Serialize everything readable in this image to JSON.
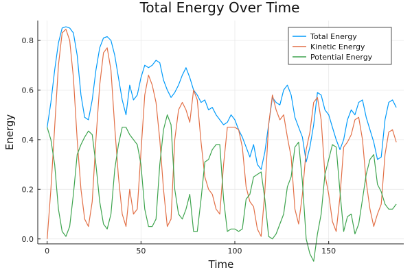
{
  "chart_data": {
    "type": "line",
    "title": "Total Energy Over Time",
    "xlabel": "Time",
    "ylabel": "Energy",
    "xlim": [
      -5,
      190
    ],
    "ylim": [
      -0.02,
      0.88
    ],
    "xticks": [
      0,
      50,
      100,
      150
    ],
    "yticks": [
      0.0,
      0.2,
      0.4,
      0.6,
      0.8
    ],
    "xtick_labels": [
      "0",
      "50",
      "100",
      "150"
    ],
    "ytick_labels": [
      "0.0",
      "0.2",
      "0.4",
      "0.6",
      "0.8"
    ],
    "grid": true,
    "legend_position": "top-right",
    "series": [
      {
        "name": "Total Energy",
        "color": "#009AFA",
        "x": [
          0,
          2,
          4,
          6,
          8,
          10,
          12,
          14,
          16,
          18,
          20,
          22,
          24,
          26,
          28,
          30,
          32,
          34,
          36,
          38,
          40,
          42,
          44,
          46,
          48,
          50,
          52,
          54,
          56,
          58,
          60,
          62,
          64,
          66,
          68,
          70,
          72,
          74,
          76,
          78,
          80,
          82,
          84,
          86,
          88,
          90,
          92,
          94,
          96,
          98,
          100,
          102,
          104,
          106,
          108,
          110,
          112,
          114,
          116,
          118,
          120,
          122,
          124,
          126,
          128,
          130,
          132,
          134,
          136,
          138,
          140,
          142,
          144,
          146,
          148,
          150,
          152,
          154,
          156,
          158,
          160,
          162,
          164,
          166,
          168,
          170,
          172,
          174,
          176,
          178,
          180,
          182,
          184,
          186
        ],
        "y": [
          0.45,
          0.55,
          0.68,
          0.79,
          0.85,
          0.855,
          0.85,
          0.83,
          0.74,
          0.58,
          0.49,
          0.48,
          0.56,
          0.68,
          0.77,
          0.81,
          0.815,
          0.8,
          0.74,
          0.65,
          0.56,
          0.5,
          0.62,
          0.56,
          0.58,
          0.65,
          0.7,
          0.69,
          0.7,
          0.72,
          0.71,
          0.64,
          0.6,
          0.57,
          0.59,
          0.62,
          0.66,
          0.69,
          0.65,
          0.6,
          0.58,
          0.55,
          0.56,
          0.52,
          0.53,
          0.5,
          0.48,
          0.46,
          0.47,
          0.5,
          0.48,
          0.44,
          0.41,
          0.37,
          0.33,
          0.38,
          0.3,
          0.28,
          0.35,
          0.46,
          0.57,
          0.55,
          0.54,
          0.6,
          0.62,
          0.58,
          0.49,
          0.45,
          0.41,
          0.31,
          0.37,
          0.46,
          0.59,
          0.58,
          0.52,
          0.5,
          0.45,
          0.4,
          0.36,
          0.4,
          0.48,
          0.52,
          0.5,
          0.55,
          0.56,
          0.49,
          0.44,
          0.39,
          0.32,
          0.33,
          0.48,
          0.55,
          0.56,
          0.53
        ]
      },
      {
        "name": "Kinetic Energy",
        "color": "#E26F46",
        "x": [
          0,
          2,
          4,
          6,
          8,
          10,
          12,
          14,
          16,
          18,
          20,
          22,
          24,
          26,
          28,
          30,
          32,
          34,
          36,
          38,
          40,
          42,
          44,
          46,
          48,
          50,
          52,
          54,
          56,
          58,
          60,
          62,
          64,
          66,
          68,
          70,
          72,
          74,
          76,
          78,
          80,
          82,
          84,
          86,
          88,
          90,
          92,
          94,
          96,
          98,
          100,
          102,
          104,
          106,
          108,
          110,
          112,
          114,
          116,
          118,
          120,
          122,
          124,
          126,
          128,
          130,
          132,
          134,
          136,
          138,
          140,
          142,
          144,
          146,
          148,
          150,
          152,
          154,
          156,
          158,
          160,
          162,
          164,
          166,
          168,
          170,
          172,
          174,
          176,
          178,
          180,
          182,
          184,
          186
        ],
        "y": [
          0.0,
          0.2,
          0.45,
          0.7,
          0.83,
          0.845,
          0.8,
          0.65,
          0.4,
          0.2,
          0.08,
          0.05,
          0.15,
          0.4,
          0.62,
          0.75,
          0.77,
          0.68,
          0.45,
          0.25,
          0.1,
          0.05,
          0.2,
          0.1,
          0.12,
          0.35,
          0.58,
          0.66,
          0.62,
          0.55,
          0.4,
          0.2,
          0.05,
          0.08,
          0.4,
          0.52,
          0.55,
          0.52,
          0.47,
          0.6,
          0.56,
          0.39,
          0.25,
          0.2,
          0.18,
          0.12,
          0.1,
          0.3,
          0.45,
          0.45,
          0.45,
          0.44,
          0.37,
          0.21,
          0.15,
          0.13,
          0.04,
          0.01,
          0.19,
          0.46,
          0.58,
          0.52,
          0.48,
          0.5,
          0.41,
          0.33,
          0.12,
          0.06,
          0.18,
          0.36,
          0.43,
          0.55,
          0.57,
          0.48,
          0.26,
          0.18,
          0.07,
          0.03,
          0.17,
          0.37,
          0.39,
          0.42,
          0.48,
          0.49,
          0.4,
          0.23,
          0.12,
          0.05,
          0.1,
          0.14,
          0.34,
          0.43,
          0.44,
          0.39
        ]
      },
      {
        "name": "Potential Energy",
        "color": "#3EA44E",
        "x": [
          0,
          2,
          4,
          6,
          8,
          10,
          12,
          14,
          16,
          18,
          20,
          22,
          24,
          26,
          28,
          30,
          32,
          34,
          36,
          38,
          40,
          42,
          44,
          46,
          48,
          50,
          52,
          54,
          56,
          58,
          60,
          62,
          64,
          66,
          68,
          70,
          72,
          74,
          76,
          78,
          80,
          82,
          84,
          86,
          88,
          90,
          92,
          94,
          96,
          98,
          100,
          102,
          104,
          106,
          108,
          110,
          112,
          114,
          116,
          118,
          120,
          122,
          124,
          126,
          128,
          130,
          132,
          134,
          136,
          138,
          140,
          142,
          144,
          146,
          148,
          150,
          152,
          154,
          156,
          158,
          160,
          162,
          164,
          166,
          168,
          170,
          172,
          174,
          176,
          178,
          180,
          182,
          184,
          186
        ],
        "y": [
          0.45,
          0.4,
          0.3,
          0.12,
          0.03,
          0.01,
          0.05,
          0.18,
          0.34,
          0.38,
          0.41,
          0.435,
          0.42,
          0.3,
          0.15,
          0.06,
          0.04,
          0.1,
          0.28,
          0.38,
          0.45,
          0.45,
          0.42,
          0.4,
          0.38,
          0.3,
          0.12,
          0.05,
          0.05,
          0.08,
          0.3,
          0.44,
          0.5,
          0.46,
          0.2,
          0.1,
          0.08,
          0.12,
          0.18,
          0.03,
          0.03,
          0.16,
          0.31,
          0.32,
          0.36,
          0.38,
          0.38,
          0.16,
          0.03,
          0.04,
          0.04,
          0.03,
          0.04,
          0.16,
          0.18,
          0.25,
          0.26,
          0.27,
          0.16,
          0.01,
          0.0,
          0.02,
          0.06,
          0.1,
          0.21,
          0.25,
          0.37,
          0.39,
          0.23,
          0.0,
          -0.06,
          -0.09,
          0.02,
          0.1,
          0.26,
          0.32,
          0.38,
          0.37,
          0.19,
          0.03,
          0.09,
          0.1,
          0.02,
          0.06,
          0.16,
          0.26,
          0.32,
          0.34,
          0.22,
          0.19,
          0.14,
          0.12,
          0.12,
          0.14
        ]
      }
    ]
  }
}
